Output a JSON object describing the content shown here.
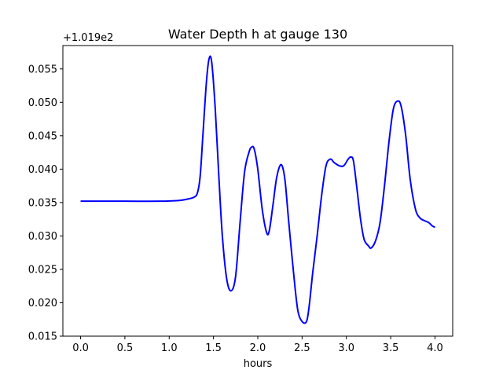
{
  "chart_data": {
    "type": "line",
    "title": "Water Depth h at gauge 130",
    "xlabel": "hours",
    "ylabel": "",
    "offset_text": "+1.019e2",
    "xlim": [
      -0.2,
      4.2
    ],
    "ylim": [
      0.015,
      0.0585
    ],
    "grid": false,
    "x_ticks": [
      0.0,
      0.5,
      1.0,
      1.5,
      2.0,
      2.5,
      3.0,
      3.5,
      4.0
    ],
    "x_tick_labels": [
      "0.0",
      "0.5",
      "1.0",
      "1.5",
      "2.0",
      "2.5",
      "3.0",
      "3.5",
      "4.0"
    ],
    "y_ticks": [
      0.015,
      0.02,
      0.025,
      0.03,
      0.035,
      0.04,
      0.045,
      0.05,
      0.055
    ],
    "y_tick_labels": [
      "0.015",
      "0.020",
      "0.025",
      "0.030",
      "0.035",
      "0.040",
      "0.045",
      "0.050",
      "0.055"
    ],
    "series": [
      {
        "color": "#0000ff",
        "x": [
          0.0,
          0.5,
          0.9,
          1.1,
          1.2,
          1.28,
          1.32,
          1.35,
          1.38,
          1.42,
          1.45,
          1.48,
          1.52,
          1.56,
          1.6,
          1.65,
          1.7,
          1.75,
          1.8,
          1.85,
          1.9,
          1.93,
          1.96,
          2.0,
          2.05,
          2.1,
          2.13,
          2.17,
          2.21,
          2.25,
          2.28,
          2.31,
          2.35,
          2.4,
          2.45,
          2.5,
          2.55,
          2.58,
          2.62,
          2.67,
          2.72,
          2.77,
          2.82,
          2.86,
          2.92,
          2.97,
          3.02,
          3.05,
          3.08,
          3.12,
          3.16,
          3.2,
          3.25,
          3.28,
          3.33,
          3.38,
          3.43,
          3.48,
          3.53,
          3.58,
          3.62,
          3.67,
          3.72,
          3.78,
          3.83,
          3.88,
          3.93,
          3.97,
          4.0
        ],
        "y": [
          0.0352,
          0.0352,
          0.0352,
          0.0353,
          0.0355,
          0.0358,
          0.0365,
          0.039,
          0.045,
          0.053,
          0.0565,
          0.056,
          0.049,
          0.039,
          0.03,
          0.0235,
          0.0218,
          0.024,
          0.032,
          0.0395,
          0.0425,
          0.0433,
          0.043,
          0.04,
          0.034,
          0.0305,
          0.0308,
          0.0345,
          0.0385,
          0.0405,
          0.0403,
          0.038,
          0.032,
          0.025,
          0.019,
          0.0172,
          0.0172,
          0.0195,
          0.0245,
          0.03,
          0.036,
          0.0405,
          0.0415,
          0.041,
          0.0405,
          0.0405,
          0.0415,
          0.0418,
          0.0412,
          0.037,
          0.0325,
          0.0295,
          0.0285,
          0.0282,
          0.0293,
          0.032,
          0.0375,
          0.044,
          0.049,
          0.0502,
          0.0493,
          0.045,
          0.0385,
          0.034,
          0.0327,
          0.0323,
          0.032,
          0.0315,
          0.0313
        ]
      }
    ]
  }
}
